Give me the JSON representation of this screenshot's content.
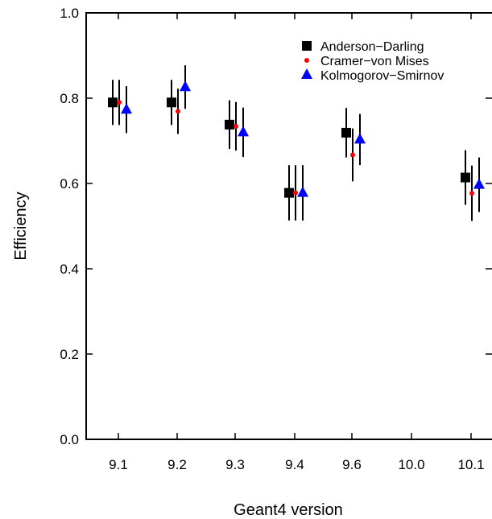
{
  "chart_data": {
    "type": "scatter",
    "title": "",
    "xlabel": "Geant4 version",
    "ylabel": "Efficiency",
    "categories": [
      "9.1",
      "9.2",
      "9.3",
      "9.4",
      "9.6",
      "10.0",
      "10.1"
    ],
    "ylim": [
      0.0,
      1.0
    ],
    "yticks": [
      "0.0",
      "0.2",
      "0.4",
      "0.6",
      "0.8",
      "1.0"
    ],
    "grid": false,
    "legend_position": "top-right",
    "series": [
      {
        "name": "Anderson-Darling",
        "marker": "square",
        "color": "#000000",
        "values": [
          0.79,
          0.79,
          0.738,
          0.578,
          0.719,
          null,
          0.614
        ],
        "err": [
          0.053,
          0.053,
          0.057,
          0.065,
          0.058,
          null,
          0.064
        ]
      },
      {
        "name": "Cramer-von Mises",
        "marker": "circle",
        "color": "#ff0000",
        "values": [
          0.79,
          0.769,
          0.734,
          0.578,
          0.667,
          null,
          0.577
        ],
        "err": [
          0.053,
          0.053,
          0.057,
          0.065,
          0.062,
          null,
          0.065
        ]
      },
      {
        "name": "Kolmogorov-Smirnov",
        "marker": "triangle",
        "color": "#0000ff",
        "values": [
          0.773,
          0.826,
          0.72,
          0.578,
          0.703,
          null,
          0.597
        ],
        "err": [
          0.055,
          0.051,
          0.058,
          0.065,
          0.06,
          null,
          0.064
        ]
      }
    ]
  }
}
